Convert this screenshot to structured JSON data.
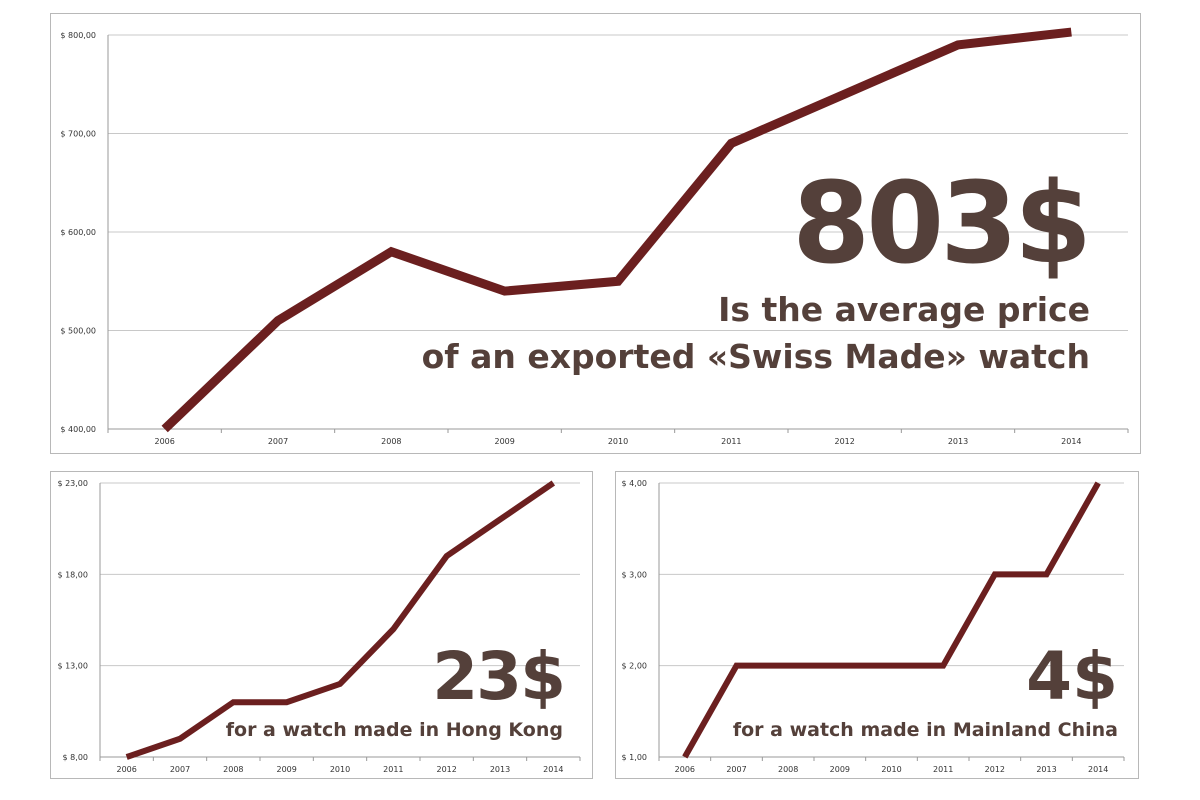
{
  "colors": {
    "line": "#6b1f1f",
    "text": "#54403a",
    "grid": "#c8c8c8"
  },
  "chart_data": [
    {
      "type": "line",
      "title": "Average price of an exported Swiss Made watch",
      "categories": [
        "2006",
        "2007",
        "2008",
        "2009",
        "2010",
        "2011",
        "2012",
        "2013",
        "2014"
      ],
      "values": [
        400,
        510,
        580,
        540,
        550,
        690,
        740,
        790,
        803
      ],
      "ylim": [
        400,
        800
      ],
      "yticks": [
        400,
        500,
        600,
        700,
        800
      ],
      "ytick_labels": [
        "$ 400,00",
        "$ 500,00",
        "$ 600,00",
        "$ 700,00",
        "$ 800,00"
      ],
      "grid": true,
      "headline": "803$",
      "caption_line1": "Is the average price",
      "caption_line2": "of an exported «Swiss Made» watch"
    },
    {
      "type": "line",
      "title": "Hong Kong",
      "categories": [
        "2006",
        "2007",
        "2008",
        "2009",
        "2010",
        "2011",
        "2012",
        "2013",
        "2014"
      ],
      "values": [
        8,
        9,
        11,
        11,
        12,
        15,
        19,
        21,
        23
      ],
      "ylim": [
        8,
        23
      ],
      "yticks": [
        8,
        13,
        18,
        23
      ],
      "ytick_labels": [
        "$ 8,00",
        "$ 13,00",
        "$ 18,00",
        "$ 23,00"
      ],
      "grid": true,
      "headline": "23$",
      "caption_line1": "for a watch made in Hong Kong"
    },
    {
      "type": "line",
      "title": "Mainland China",
      "categories": [
        "2006",
        "2007",
        "2008",
        "2009",
        "2010",
        "2011",
        "2012",
        "2013",
        "2014"
      ],
      "values": [
        1,
        2,
        2,
        2,
        2,
        2,
        3,
        3,
        4
      ],
      "ylim": [
        1,
        4
      ],
      "yticks": [
        1,
        2,
        3,
        4
      ],
      "ytick_labels": [
        "$ 1,00",
        "$ 2,00",
        "$ 3,00",
        "$ 4,00"
      ],
      "grid": true,
      "headline": "4$",
      "caption_line1": "for a watch made in Mainland China"
    }
  ]
}
